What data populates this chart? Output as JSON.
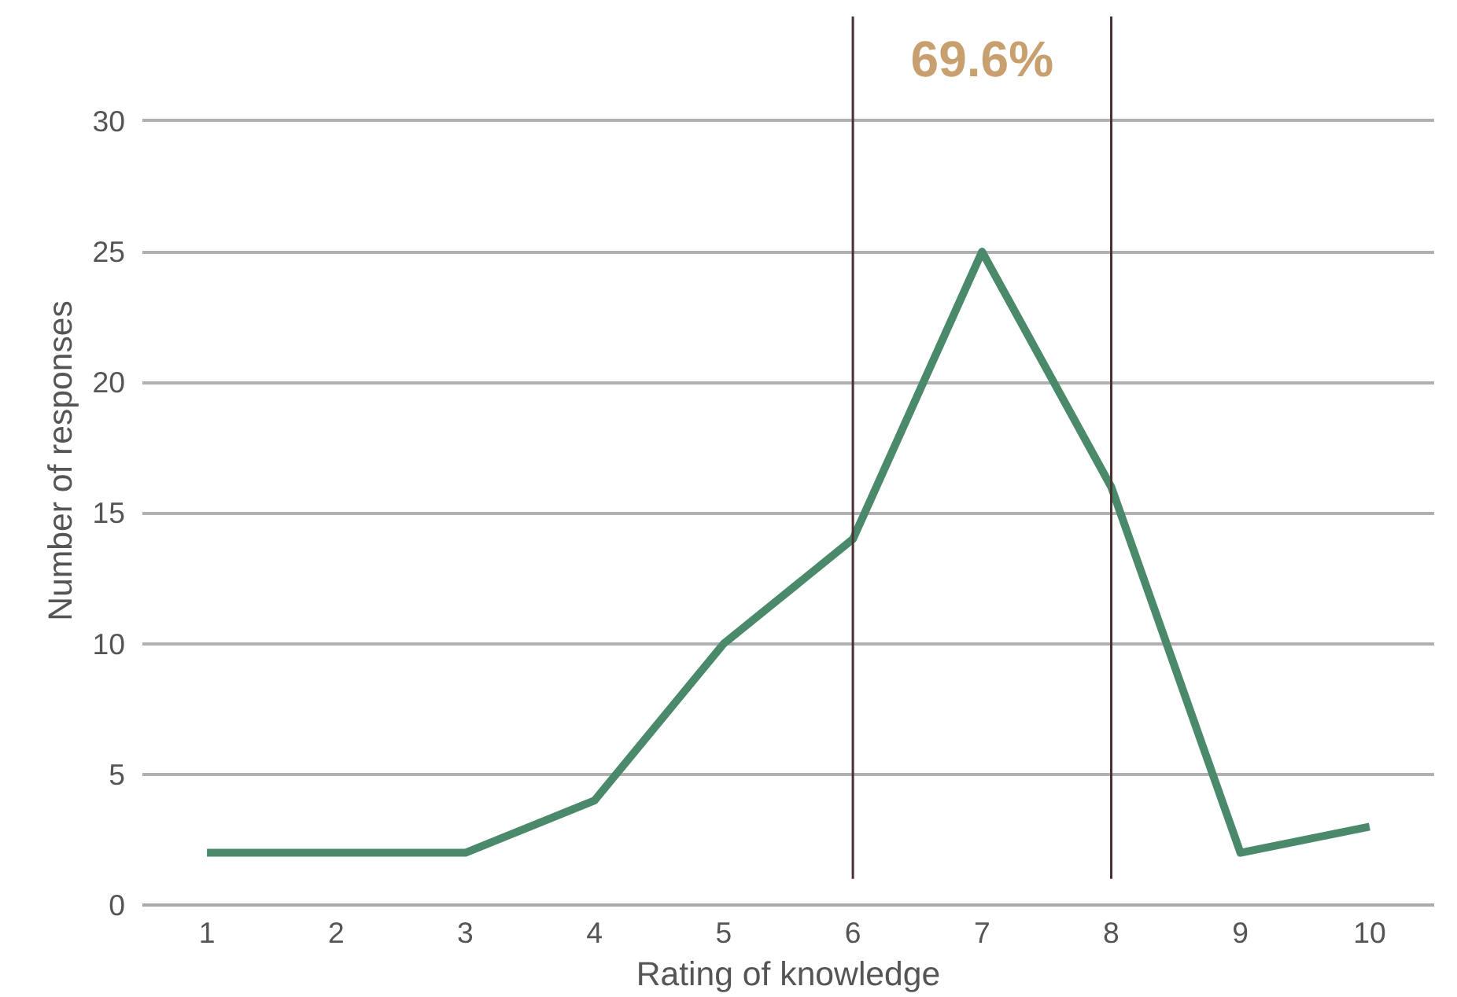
{
  "chart_data": {
    "type": "line",
    "xlabel": "Rating of knowledge",
    "ylabel": "Number of responses",
    "x": [
      1,
      2,
      3,
      4,
      5,
      6,
      7,
      8,
      9,
      10
    ],
    "series": [
      {
        "color": "#4a8a6a",
        "values": [
          2,
          2,
          2,
          4,
          10,
          14,
          25,
          16,
          2,
          3
        ]
      }
    ],
    "xlim": [
      0.5,
      10.5
    ],
    "xticks": [
      1,
      2,
      3,
      4,
      5,
      6,
      7,
      8,
      9,
      10
    ],
    "ylim": [
      0,
      34
    ],
    "yticks": [
      0,
      5,
      10,
      15,
      20,
      25,
      30
    ],
    "grid": "y",
    "marker": "none",
    "line_style": "solid",
    "ref_lines": [
      {
        "axis": "x",
        "value": 6,
        "color": "#4a3030"
      },
      {
        "axis": "x",
        "value": 8,
        "color": "#4a3030"
      }
    ],
    "annotations": [
      "69.6%"
    ]
  }
}
